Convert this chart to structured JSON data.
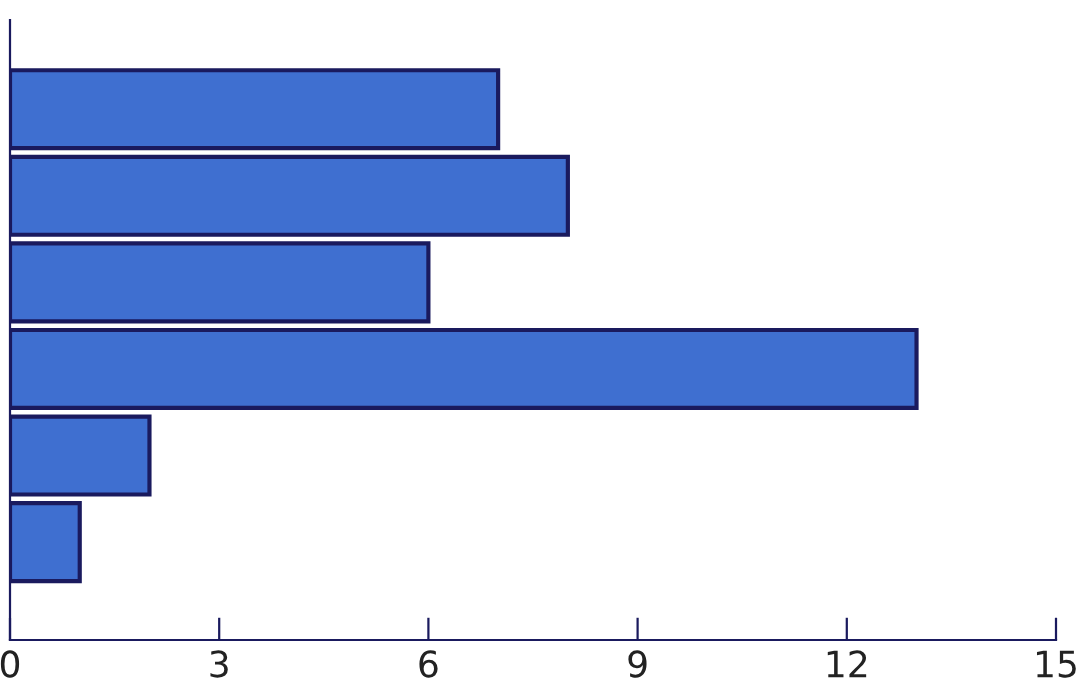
{
  "chart_data": {
    "type": "bar",
    "orientation": "horizontal",
    "categories": [
      null,
      null,
      null,
      null,
      null,
      null
    ],
    "values": [
      7,
      8,
      6,
      13,
      2,
      1
    ],
    "color": "#3f6fd0",
    "xlim": [
      0,
      15
    ],
    "xticks": [
      0,
      3,
      6,
      9,
      12,
      15
    ],
    "grid": false,
    "legend": false
  }
}
